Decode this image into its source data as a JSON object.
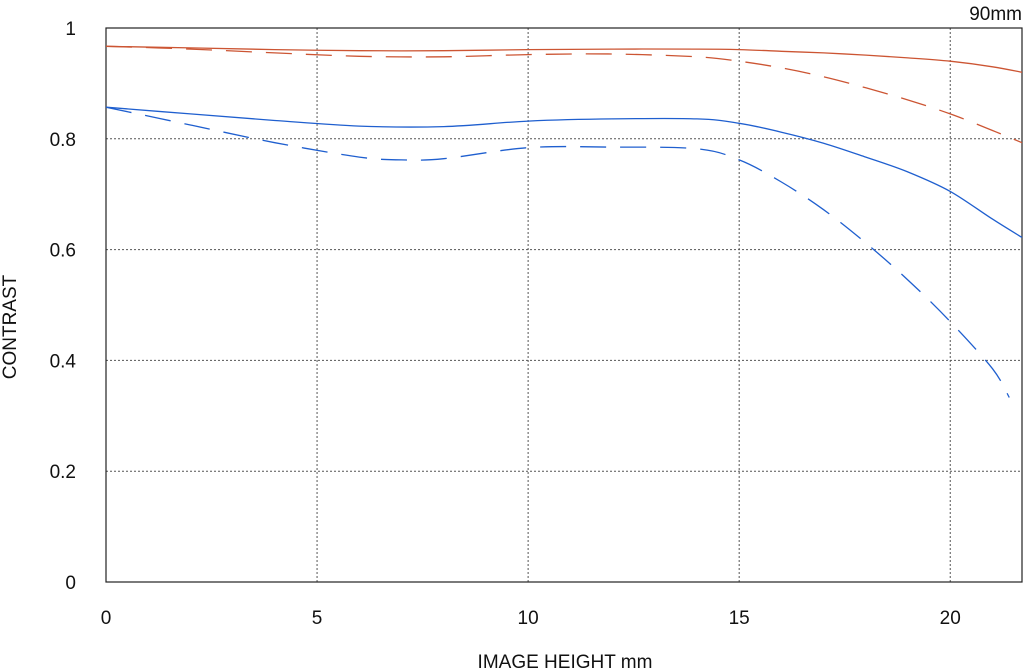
{
  "chart_data": {
    "type": "line",
    "title": "",
    "focal_label": "90mm",
    "xlabel": "IMAGE HEIGHT  mm",
    "ylabel": "CONTRAST",
    "xlim": [
      0,
      21.7
    ],
    "ylim": [
      0,
      1
    ],
    "xticks": [
      "0",
      "5",
      "10",
      "15",
      "20"
    ],
    "yticks": [
      "0",
      "0.2",
      "0.4",
      "0.6",
      "0.8",
      "1"
    ],
    "grid": true,
    "legend": "none",
    "colors": {
      "red": "#cc5533",
      "blue": "#1f5fcf",
      "axis": "#222222",
      "grid": "#555555"
    },
    "series": [
      {
        "color": "red",
        "dashed": false,
        "x": [
          0,
          2,
          4,
          6,
          8,
          10,
          12,
          14,
          15,
          16,
          17,
          18,
          19,
          20,
          21,
          21.7
        ],
        "y": [
          0.967,
          0.964,
          0.961,
          0.959,
          0.959,
          0.961,
          0.962,
          0.962,
          0.961,
          0.958,
          0.955,
          0.951,
          0.946,
          0.94,
          0.93,
          0.92
        ]
      },
      {
        "color": "red",
        "dashed": true,
        "x": [
          0,
          2,
          4,
          6,
          8,
          10,
          12,
          14,
          15,
          16,
          17,
          18,
          19,
          20,
          21,
          21.7
        ],
        "y": [
          0.967,
          0.962,
          0.955,
          0.949,
          0.948,
          0.952,
          0.953,
          0.948,
          0.94,
          0.928,
          0.912,
          0.892,
          0.87,
          0.845,
          0.815,
          0.793
        ]
      },
      {
        "color": "blue",
        "dashed": false,
        "x": [
          0,
          2,
          4,
          6,
          8,
          10,
          12,
          14,
          15,
          16,
          17,
          18,
          19,
          20,
          21,
          21.7
        ],
        "y": [
          0.857,
          0.845,
          0.833,
          0.823,
          0.822,
          0.832,
          0.836,
          0.836,
          0.828,
          0.812,
          0.792,
          0.767,
          0.74,
          0.705,
          0.655,
          0.622
        ]
      },
      {
        "color": "blue",
        "dashed": true,
        "x": [
          0,
          2,
          4,
          6,
          7,
          8,
          10,
          12,
          14,
          15,
          16,
          17,
          18,
          19,
          20,
          21,
          21.4
        ],
        "y": [
          0.857,
          0.825,
          0.793,
          0.767,
          0.762,
          0.764,
          0.784,
          0.785,
          0.782,
          0.762,
          0.722,
          0.672,
          0.612,
          0.545,
          0.47,
          0.385,
          0.333
        ]
      }
    ]
  }
}
